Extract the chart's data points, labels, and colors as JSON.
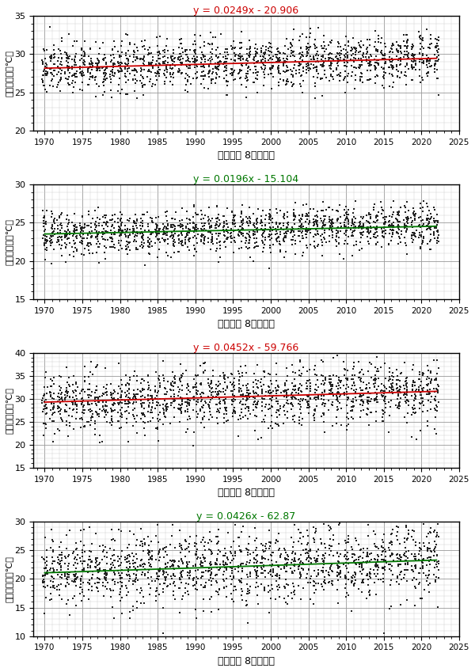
{
  "panels": [
    {
      "title": "y = 0.0249x - 20.906",
      "title_color": "#cc0000",
      "ylabel": "日最高気温（℃）",
      "xlabel": "（室戸岸 8月）　年",
      "ylim": [
        20,
        35
      ],
      "yticks": [
        20,
        25,
        30,
        35
      ],
      "slope": 0.0249,
      "intercept": -20.906,
      "trend_color": "#cc0000",
      "scatter_std": 1.6,
      "seed": 42
    },
    {
      "title": "y = 0.0196x - 15.104",
      "title_color": "#007700",
      "ylabel": "日最低気温（℃）",
      "xlabel": "（室戸岸 8月）　年",
      "ylim": [
        15,
        30
      ],
      "yticks": [
        15,
        20,
        25,
        30
      ],
      "slope": 0.0196,
      "intercept": -15.104,
      "trend_color": "#007700",
      "scatter_std": 1.4,
      "seed": 123
    },
    {
      "title": "y = 0.0452x - 59.766",
      "title_color": "#cc0000",
      "ylabel": "日最高気温（℃）",
      "xlabel": "（宇都宮 8月）　年",
      "ylim": [
        15,
        40
      ],
      "yticks": [
        15,
        20,
        25,
        30,
        35,
        40
      ],
      "slope": 0.0452,
      "intercept": -59.766,
      "trend_color": "#cc0000",
      "scatter_std": 3.2,
      "seed": 7
    },
    {
      "title": "y = 0.0426x - 62.87",
      "title_color": "#007700",
      "ylabel": "日最低気温（℃）",
      "xlabel": "（宇都宮 8月）　年",
      "ylim": [
        10,
        30
      ],
      "yticks": [
        10,
        15,
        20,
        25,
        30
      ],
      "slope": 0.0426,
      "intercept": -62.87,
      "trend_color": "#007700",
      "scatter_std": 3.0,
      "seed": 99
    }
  ],
  "x_start": 1970,
  "x_end": 2022,
  "xticks": [
    1970,
    1975,
    1980,
    1985,
    1990,
    1995,
    2000,
    2005,
    2010,
    2015,
    2020,
    2025
  ],
  "xlim": [
    1968.5,
    2024.5
  ],
  "points_per_year": 31,
  "fig_width": 6.0,
  "fig_height": 8.49,
  "marker_size": 1.8,
  "marker_color": "#222222",
  "grid_major_color": "#999999",
  "grid_minor_color": "#cccccc",
  "background_color": "#ffffff"
}
